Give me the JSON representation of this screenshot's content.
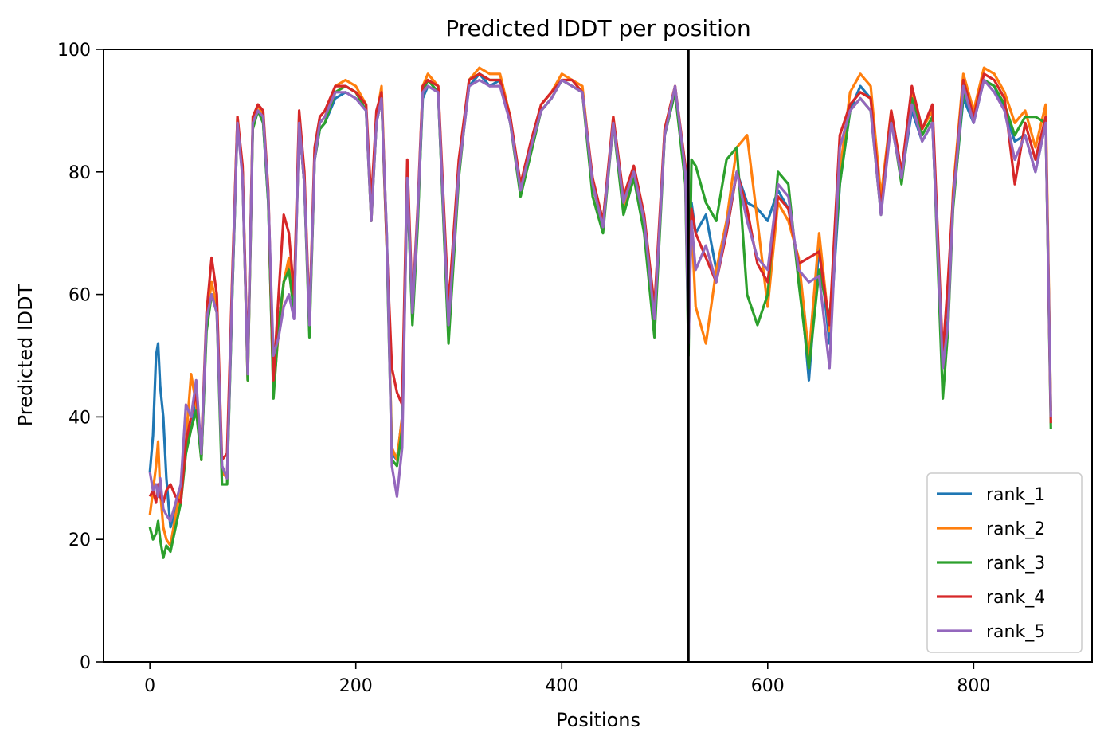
{
  "chart_data": {
    "type": "line",
    "title": "Predicted lDDT per position",
    "xlabel": "Positions",
    "ylabel": "Predicted lDDT",
    "xlim": [
      -45,
      915
    ],
    "ylim": [
      0,
      100
    ],
    "xticks": [
      0,
      200,
      400,
      600,
      800
    ],
    "yticks": [
      0,
      20,
      40,
      60,
      80,
      100
    ],
    "grid": false,
    "legend_position": "lower-right",
    "vertical_line_x": 523,
    "series": [
      {
        "name": "rank_1",
        "color": "#1f77b4",
        "x": [
          0,
          3,
          6,
          8,
          10,
          13,
          16,
          20,
          25,
          30,
          35,
          40,
          45,
          50,
          55,
          60,
          65,
          70,
          75,
          80,
          85,
          90,
          95,
          100,
          105,
          110,
          115,
          120,
          125,
          130,
          135,
          140,
          145,
          150,
          155,
          160,
          165,
          170,
          180,
          190,
          200,
          210,
          215,
          220,
          225,
          230,
          235,
          240,
          245,
          250,
          255,
          260,
          265,
          270,
          280,
          290,
          300,
          310,
          320,
          330,
          340,
          350,
          360,
          370,
          380,
          390,
          400,
          410,
          420,
          430,
          440,
          450,
          460,
          470,
          480,
          490,
          500,
          510,
          520,
          523,
          526,
          530,
          540,
          550,
          560,
          570,
          580,
          590,
          600,
          610,
          620,
          630,
          640,
          650,
          660,
          670,
          680,
          690,
          700,
          710,
          720,
          730,
          740,
          750,
          760,
          770,
          775,
          780,
          790,
          800,
          810,
          820,
          830,
          840,
          850,
          860,
          870,
          875
        ],
        "values": [
          31,
          37,
          50,
          52,
          45,
          40,
          30,
          22,
          25,
          28,
          36,
          38,
          42,
          33,
          55,
          60,
          58,
          32,
          30,
          60,
          88,
          80,
          47,
          88,
          90,
          88,
          75,
          44,
          55,
          62,
          65,
          58,
          88,
          78,
          55,
          82,
          87,
          88,
          92,
          93,
          92,
          90,
          73,
          88,
          92,
          70,
          34,
          33,
          40,
          78,
          56,
          72,
          92,
          94,
          93,
          53,
          80,
          94,
          96,
          94,
          95,
          88,
          78,
          84,
          90,
          92,
          95,
          94,
          93,
          78,
          72,
          88,
          75,
          80,
          72,
          57,
          86,
          93,
          80,
          55,
          75,
          70,
          73,
          64,
          70,
          80,
          75,
          74,
          72,
          77,
          74,
          65,
          46,
          68,
          52,
          78,
          90,
          94,
          92,
          75,
          88,
          79,
          90,
          85,
          88,
          48,
          56,
          75,
          92,
          88,
          95,
          94,
          90,
          85,
          86,
          80,
          88,
          41
        ]
      },
      {
        "name": "rank_2",
        "color": "#ff7f0e",
        "x": [
          0,
          3,
          6,
          8,
          10,
          13,
          16,
          20,
          25,
          30,
          35,
          40,
          45,
          50,
          55,
          60,
          65,
          70,
          75,
          80,
          85,
          90,
          95,
          100,
          105,
          110,
          115,
          120,
          125,
          130,
          135,
          140,
          145,
          150,
          155,
          160,
          165,
          170,
          180,
          190,
          200,
          210,
          215,
          220,
          225,
          230,
          235,
          240,
          245,
          250,
          255,
          260,
          265,
          270,
          280,
          290,
          300,
          310,
          320,
          330,
          340,
          350,
          360,
          370,
          380,
          390,
          400,
          410,
          420,
          430,
          440,
          450,
          460,
          470,
          480,
          490,
          500,
          510,
          520,
          523,
          526,
          530,
          540,
          550,
          560,
          570,
          580,
          590,
          600,
          610,
          620,
          630,
          640,
          650,
          660,
          670,
          680,
          690,
          700,
          710,
          720,
          730,
          740,
          750,
          760,
          770,
          775,
          780,
          790,
          800,
          810,
          820,
          830,
          840,
          850,
          860,
          870,
          875
        ],
        "values": [
          24,
          28,
          32,
          36,
          28,
          22,
          20,
          19,
          24,
          28,
          36,
          47,
          42,
          33,
          56,
          62,
          58,
          31,
          30,
          62,
          89,
          80,
          46,
          88,
          91,
          89,
          76,
          44,
          54,
          62,
          66,
          57,
          89,
          79,
          54,
          83,
          88,
          89,
          94,
          95,
          94,
          91,
          72,
          89,
          94,
          69,
          35,
          33,
          40,
          80,
          56,
          72,
          94,
          96,
          94,
          53,
          80,
          95,
          97,
          96,
          96,
          89,
          77,
          84,
          91,
          93,
          96,
          95,
          94,
          78,
          71,
          89,
          74,
          80,
          71,
          56,
          87,
          94,
          79,
          54,
          72,
          58,
          52,
          64,
          72,
          84,
          86,
          72,
          58,
          75,
          72,
          66,
          50,
          70,
          54,
          80,
          93,
          96,
          94,
          76,
          90,
          80,
          93,
          87,
          90,
          48,
          54,
          77,
          96,
          90,
          97,
          96,
          93,
          88,
          90,
          84,
          91,
          41
        ]
      },
      {
        "name": "rank_3",
        "color": "#2ca02c",
        "x": [
          0,
          3,
          6,
          8,
          10,
          13,
          16,
          20,
          25,
          30,
          35,
          40,
          45,
          50,
          55,
          60,
          65,
          70,
          75,
          80,
          85,
          90,
          95,
          100,
          105,
          110,
          115,
          120,
          125,
          130,
          135,
          140,
          145,
          150,
          155,
          160,
          165,
          170,
          180,
          190,
          200,
          210,
          215,
          220,
          225,
          230,
          235,
          240,
          245,
          250,
          255,
          260,
          265,
          270,
          280,
          290,
          300,
          310,
          320,
          330,
          340,
          350,
          360,
          370,
          380,
          390,
          400,
          410,
          420,
          430,
          440,
          450,
          460,
          470,
          480,
          490,
          500,
          510,
          520,
          523,
          526,
          530,
          540,
          550,
          560,
          570,
          580,
          590,
          600,
          610,
          620,
          630,
          640,
          650,
          660,
          670,
          680,
          690,
          700,
          710,
          720,
          730,
          740,
          750,
          760,
          770,
          775,
          780,
          790,
          800,
          810,
          820,
          830,
          840,
          850,
          860,
          870,
          875
        ],
        "values": [
          22,
          20,
          21,
          23,
          20,
          17,
          19,
          18,
          22,
          26,
          34,
          38,
          41,
          33,
          54,
          60,
          57,
          29,
          29,
          60,
          88,
          80,
          46,
          87,
          90,
          88,
          75,
          43,
          55,
          62,
          64,
          57,
          88,
          78,
          53,
          82,
          87,
          88,
          93,
          94,
          93,
          90,
          72,
          88,
          92,
          68,
          33,
          32,
          38,
          78,
          55,
          71,
          93,
          95,
          93,
          52,
          79,
          95,
          96,
          95,
          95,
          88,
          76,
          83,
          90,
          92,
          95,
          94,
          93,
          76,
          70,
          88,
          73,
          79,
          70,
          53,
          86,
          93,
          78,
          50,
          82,
          81,
          75,
          72,
          82,
          84,
          60,
          55,
          60,
          80,
          78,
          62,
          48,
          64,
          56,
          78,
          90,
          92,
          90,
          73,
          89,
          78,
          92,
          86,
          89,
          43,
          54,
          74,
          93,
          89,
          95,
          94,
          91,
          86,
          89,
          89,
          88,
          38
        ]
      },
      {
        "name": "rank_4",
        "color": "#d62728",
        "x": [
          0,
          3,
          6,
          8,
          10,
          13,
          16,
          20,
          25,
          30,
          35,
          40,
          45,
          50,
          55,
          60,
          65,
          70,
          75,
          80,
          85,
          90,
          95,
          100,
          105,
          110,
          115,
          120,
          125,
          130,
          135,
          140,
          145,
          150,
          155,
          160,
          165,
          170,
          180,
          190,
          200,
          210,
          215,
          220,
          225,
          230,
          235,
          240,
          245,
          250,
          255,
          260,
          265,
          270,
          280,
          290,
          300,
          310,
          320,
          330,
          340,
          350,
          360,
          370,
          380,
          390,
          400,
          410,
          420,
          430,
          440,
          450,
          460,
          470,
          480,
          490,
          500,
          510,
          520,
          523,
          526,
          530,
          540,
          550,
          560,
          570,
          580,
          590,
          600,
          610,
          620,
          630,
          640,
          650,
          660,
          670,
          680,
          690,
          700,
          710,
          720,
          730,
          740,
          750,
          760,
          770,
          775,
          780,
          790,
          800,
          810,
          820,
          830,
          840,
          850,
          860,
          870,
          875
        ],
        "values": [
          27,
          28,
          26,
          29,
          27,
          26,
          28,
          29,
          27,
          26,
          36,
          40,
          44,
          35,
          57,
          66,
          60,
          33,
          34,
          63,
          89,
          81,
          48,
          89,
          91,
          90,
          77,
          46,
          60,
          73,
          70,
          60,
          90,
          80,
          56,
          84,
          89,
          90,
          94,
          94,
          93,
          91,
          75,
          90,
          93,
          68,
          48,
          44,
          42,
          82,
          58,
          74,
          94,
          95,
          94,
          58,
          82,
          95,
          96,
          95,
          95,
          89,
          78,
          85,
          91,
          93,
          95,
          95,
          93,
          79,
          72,
          89,
          76,
          81,
          73,
          58,
          87,
          94,
          81,
          56,
          74,
          70,
          66,
          62,
          70,
          80,
          74,
          65,
          62,
          76,
          74,
          65,
          66,
          67,
          55,
          86,
          91,
          93,
          92,
          74,
          90,
          80,
          94,
          87,
          91,
          50,
          62,
          76,
          95,
          89,
          96,
          95,
          92,
          78,
          88,
          82,
          89,
          39
        ]
      },
      {
        "name": "rank_5",
        "color": "#9467bd",
        "x": [
          0,
          3,
          6,
          8,
          10,
          13,
          16,
          20,
          25,
          30,
          35,
          40,
          45,
          50,
          55,
          60,
          65,
          70,
          75,
          80,
          85,
          90,
          95,
          100,
          105,
          110,
          115,
          120,
          125,
          130,
          135,
          140,
          145,
          150,
          155,
          160,
          165,
          170,
          180,
          190,
          200,
          210,
          215,
          220,
          225,
          230,
          235,
          240,
          245,
          250,
          255,
          260,
          265,
          270,
          280,
          290,
          300,
          310,
          320,
          330,
          340,
          350,
          360,
          370,
          380,
          390,
          400,
          410,
          420,
          430,
          440,
          450,
          460,
          470,
          480,
          490,
          500,
          510,
          520,
          523,
          526,
          530,
          540,
          550,
          560,
          570,
          580,
          590,
          600,
          610,
          620,
          630,
          640,
          650,
          660,
          670,
          680,
          690,
          700,
          710,
          720,
          730,
          740,
          750,
          760,
          770,
          775,
          780,
          790,
          800,
          810,
          820,
          830,
          840,
          850,
          860,
          870,
          875
        ],
        "values": [
          31,
          28,
          29,
          27,
          30,
          25,
          24,
          23,
          26,
          29,
          42,
          40,
          46,
          34,
          56,
          60,
          57,
          32,
          30,
          61,
          88,
          79,
          47,
          88,
          90,
          89,
          76,
          50,
          53,
          58,
          60,
          56,
          88,
          78,
          55,
          82,
          88,
          89,
          93,
          93,
          92,
          90,
          72,
          88,
          92,
          70,
          32,
          27,
          35,
          79,
          57,
          73,
          93,
          94,
          93,
          55,
          80,
          94,
          95,
          94,
          94,
          88,
          77,
          84,
          90,
          92,
          95,
          94,
          93,
          78,
          71,
          88,
          75,
          80,
          72,
          56,
          86,
          94,
          80,
          52,
          72,
          64,
          68,
          62,
          71,
          80,
          72,
          66,
          64,
          78,
          76,
          64,
          62,
          63,
          48,
          84,
          90,
          92,
          90,
          73,
          88,
          79,
          91,
          85,
          88,
          48,
          55,
          75,
          94,
          88,
          95,
          93,
          90,
          82,
          86,
          80,
          88,
          40
        ]
      }
    ]
  }
}
